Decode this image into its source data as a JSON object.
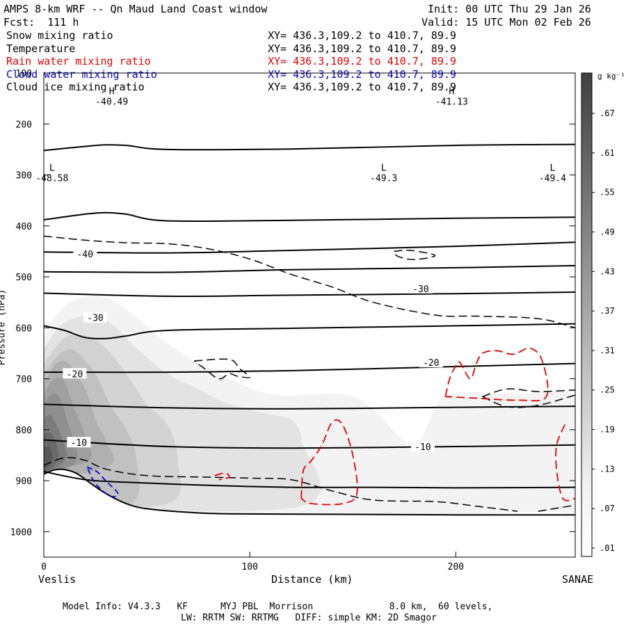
{
  "header": {
    "title": "AMPS 8-km WRF -- Qn Maud Land Coast window",
    "fcst": "Fcst:  111 h",
    "init": "Init: 00 UTC Thu 29 Jan 26",
    "valid": "Valid: 15 UTC Mon 02 Feb 26"
  },
  "fields": [
    {
      "name": "Snow mixing ratio",
      "xy": "XY= 436.3,109.2 to 410.7, 89.9",
      "color": "#000000"
    },
    {
      "name": "Temperature",
      "xy": "XY= 436.3,109.2 to 410.7, 89.9",
      "color": "#000000"
    },
    {
      "name": "Rain water mixing ratio",
      "xy": "XY= 436.3,109.2 to 410.7, 89.9",
      "color": "#e00000"
    },
    {
      "name": "Cloud water mixing ratio",
      "xy": "XY= 436.3,109.2 to 410.7, 89.9",
      "color": "#0000cc"
    },
    {
      "name": "Cloud ice mixing ratio",
      "xy": "XY= 436.3,109.2 to 410.7, 89.9",
      "color": "#000000"
    }
  ],
  "chart_data": {
    "type": "contour-cross-section",
    "xlabel": "Distance (km)",
    "ylabel": "Pressure (hPa)",
    "xlim": [
      0,
      258
    ],
    "ylim": [
      100,
      1050
    ],
    "x_ticks": [
      0,
      100,
      200
    ],
    "y_ticks": [
      100,
      200,
      300,
      400,
      500,
      600,
      700,
      800,
      900,
      1000
    ],
    "endpoints": {
      "left": "Veslis",
      "right": "SANAE"
    },
    "colorbar": {
      "unit": "g kg⁻¹",
      "labels": [
        ".67",
        ".61",
        ".55",
        ".49",
        ".43",
        ".37",
        ".31",
        ".25",
        ".19",
        ".13",
        ".07",
        ".01"
      ],
      "values": [
        0.67,
        0.61,
        0.55,
        0.49,
        0.43,
        0.37,
        0.31,
        0.25,
        0.19,
        0.13,
        0.07,
        0.01
      ]
    },
    "extrema": [
      {
        "type": "H",
        "value": "-40.49",
        "x": 33,
        "p": 150
      },
      {
        "type": "L",
        "value": "-48.58",
        "x": 4,
        "p": 300
      },
      {
        "type": "L",
        "value": "-49.3",
        "x": 165,
        "p": 300
      },
      {
        "type": "H",
        "value": "-41.13",
        "x": 198,
        "p": 150
      },
      {
        "type": "L",
        "value": "-49.4",
        "x": 247,
        "p": 300
      }
    ],
    "isotherm_labels": [
      {
        "value": "-40",
        "x": 20,
        "p": 455
      },
      {
        "value": "-30",
        "x": 25,
        "p": 580
      },
      {
        "value": "-30",
        "x": 183,
        "p": 523
      },
      {
        "value": "-20",
        "x": 15,
        "p": 690
      },
      {
        "value": "-20",
        "x": 188,
        "p": 668
      },
      {
        "value": "-10",
        "x": 17,
        "p": 825
      },
      {
        "value": "-10",
        "x": 184,
        "p": 833
      }
    ],
    "isotherms": [
      {
        "points": [
          [
            0,
            252
          ],
          [
            20,
            244
          ],
          [
            30,
            241
          ],
          [
            40,
            242
          ],
          [
            60,
            250
          ],
          [
            120,
            249
          ],
          [
            200,
            242
          ],
          [
            258,
            240
          ]
        ]
      },
      {
        "points": [
          [
            0,
            388
          ],
          [
            20,
            377
          ],
          [
            30,
            374
          ],
          [
            40,
            377
          ],
          [
            60,
            390
          ],
          [
            120,
            389
          ],
          [
            200,
            385
          ],
          [
            258,
            383
          ]
        ]
      },
      {
        "points": [
          [
            0,
            451
          ],
          [
            60,
            453
          ],
          [
            120,
            448
          ],
          [
            200,
            440
          ],
          [
            258,
            432
          ]
        ]
      },
      {
        "points": [
          [
            0,
            490
          ],
          [
            60,
            491
          ],
          [
            120,
            486
          ],
          [
            200,
            482
          ],
          [
            258,
            478
          ]
        ]
      },
      {
        "points": [
          [
            0,
            532
          ],
          [
            60,
            538
          ],
          [
            120,
            536
          ],
          [
            200,
            533
          ],
          [
            258,
            530
          ]
        ]
      },
      {
        "points": [
          [
            0,
            596
          ],
          [
            10,
            605
          ],
          [
            20,
            619
          ],
          [
            30,
            621
          ],
          [
            40,
            616
          ],
          [
            60,
            605
          ],
          [
            120,
            601
          ],
          [
            200,
            596
          ],
          [
            258,
            592
          ]
        ]
      },
      {
        "points": [
          [
            0,
            687
          ],
          [
            60,
            687
          ],
          [
            120,
            684
          ],
          [
            200,
            676
          ],
          [
            258,
            670
          ]
        ]
      },
      {
        "points": [
          [
            0,
            750
          ],
          [
            60,
            757
          ],
          [
            120,
            759
          ],
          [
            200,
            756
          ],
          [
            258,
            754
          ]
        ]
      },
      {
        "points": [
          [
            0,
            820
          ],
          [
            60,
            833
          ],
          [
            120,
            836
          ],
          [
            200,
            833
          ],
          [
            258,
            830
          ]
        ]
      },
      {
        "points": [
          [
            0,
            882
          ],
          [
            20,
            898
          ],
          [
            40,
            903
          ],
          [
            80,
            909
          ],
          [
            120,
            913
          ],
          [
            160,
            913
          ],
          [
            200,
            914
          ],
          [
            258,
            913
          ]
        ]
      }
    ],
    "terrain": [
      [
        0,
        887
      ],
      [
        5,
        879
      ],
      [
        10,
        878
      ],
      [
        16,
        886
      ],
      [
        22,
        903
      ],
      [
        30,
        925
      ],
      [
        40,
        945
      ],
      [
        50,
        955
      ],
      [
        70,
        962
      ],
      [
        90,
        965
      ],
      [
        150,
        966
      ],
      [
        200,
        967
      ],
      [
        258,
        967
      ]
    ],
    "dashed_contours": [
      {
        "points": [
          [
            0,
            420
          ],
          [
            20,
            428
          ],
          [
            40,
            433
          ],
          [
            60,
            435
          ],
          [
            80,
            445
          ],
          [
            100,
            465
          ],
          [
            120,
            495
          ],
          [
            140,
            520
          ],
          [
            160,
            550
          ],
          [
            190,
            575
          ],
          [
            210,
            577
          ],
          [
            240,
            582
          ],
          [
            258,
            600
          ]
        ]
      },
      {
        "points": [
          [
            0,
            870
          ],
          [
            10,
            855
          ],
          [
            20,
            860
          ],
          [
            30,
            877
          ],
          [
            50,
            890
          ],
          [
            80,
            893
          ],
          [
            100,
            895
          ],
          [
            120,
            898
          ],
          [
            140,
            920
          ],
          [
            160,
            938
          ],
          [
            190,
            941
          ],
          [
            210,
            950
          ],
          [
            230,
            960
          ]
        ]
      },
      {
        "points": [
          [
            170,
            450
          ],
          [
            178,
            448
          ],
          [
            190,
            458
          ],
          [
            180,
            466
          ],
          [
            172,
            460
          ],
          [
            170,
            450
          ]
        ]
      },
      {
        "points": [
          [
            73,
            665
          ],
          [
            90,
            662
          ],
          [
            95,
            680
          ],
          [
            100,
            697
          ],
          [
            94,
            695
          ],
          [
            90,
            690
          ],
          [
            85,
            700
          ],
          [
            78,
            680
          ],
          [
            73,
            665
          ]
        ]
      },
      {
        "points": [
          [
            213,
            735
          ],
          [
            225,
            720
          ],
          [
            240,
            725
          ],
          [
            258,
            722
          ]
        ]
      },
      {
        "points": [
          [
            213,
            735
          ],
          [
            225,
            755
          ],
          [
            240,
            752
          ],
          [
            258,
            732
          ]
        ]
      },
      {
        "points": [
          [
            240,
            960
          ],
          [
            258,
            948
          ]
        ]
      }
    ],
    "rain_contours": [
      {
        "points": [
          [
            125,
            935
          ],
          [
            126,
            880
          ],
          [
            130,
            860
          ],
          [
            135,
            830
          ],
          [
            140,
            785
          ],
          [
            145,
            790
          ],
          [
            150,
            850
          ],
          [
            152,
            925
          ],
          [
            145,
            945
          ],
          [
            130,
            945
          ],
          [
            125,
            935
          ]
        ]
      },
      {
        "points": [
          [
            195,
            735
          ],
          [
            197,
            700
          ],
          [
            200,
            675
          ],
          [
            202,
            668
          ],
          [
            207,
            700
          ],
          [
            210,
            670
          ],
          [
            213,
            650
          ],
          [
            220,
            645
          ],
          [
            228,
            652
          ],
          [
            236,
            640
          ],
          [
            242,
            665
          ],
          [
            244,
            735
          ],
          [
            230,
            742
          ],
          [
            210,
            738
          ],
          [
            195,
            735
          ]
        ]
      },
      {
        "points": [
          [
            253,
            790
          ],
          [
            249,
            830
          ],
          [
            249,
            880
          ],
          [
            252,
            935
          ],
          [
            258,
            935
          ]
        ]
      },
      {
        "points": [
          [
            83,
            890
          ],
          [
            88,
            885
          ],
          [
            90,
            893
          ],
          [
            85,
            898
          ]
        ]
      }
    ],
    "cloud_water_contours": [
      {
        "points": [
          [
            21,
            873
          ],
          [
            26,
            883
          ],
          [
            30,
            900
          ],
          [
            36,
            925
          ],
          [
            32,
            930
          ],
          [
            25,
            905
          ],
          [
            21,
            873
          ]
        ]
      }
    ],
    "snow_fill": [
      {
        "level": 0.01,
        "color": "#f3f3f3",
        "points": [
          [
            0,
            620
          ],
          [
            5,
            580
          ],
          [
            15,
            545
          ],
          [
            30,
            540
          ],
          [
            45,
            580
          ],
          [
            60,
            630
          ],
          [
            80,
            680
          ],
          [
            110,
            730
          ],
          [
            145,
            730
          ],
          [
            160,
            760
          ],
          [
            180,
            830
          ],
          [
            195,
            735
          ],
          [
            230,
            730
          ],
          [
            258,
            740
          ],
          [
            258,
            960
          ],
          [
            0,
            960
          ]
        ]
      },
      {
        "level": 0.07,
        "color": "#e3e3e3",
        "points": [
          [
            0,
            640
          ],
          [
            10,
            590
          ],
          [
            25,
            575
          ],
          [
            35,
            600
          ],
          [
            45,
            640
          ],
          [
            60,
            690
          ],
          [
            75,
            720
          ],
          [
            90,
            750
          ],
          [
            110,
            770
          ],
          [
            120,
            780
          ],
          [
            125,
            820
          ],
          [
            125,
            950
          ],
          [
            0,
            950
          ]
        ]
      },
      {
        "level": 0.13,
        "color": "#d2d2d2",
        "points": [
          [
            0,
            670
          ],
          [
            10,
            620
          ],
          [
            20,
            615
          ],
          [
            30,
            640
          ],
          [
            40,
            690
          ],
          [
            50,
            750
          ],
          [
            60,
            790
          ],
          [
            65,
            860
          ],
          [
            60,
            945
          ],
          [
            0,
            945
          ]
        ]
      },
      {
        "level": 0.19,
        "color": "#c1c1c1",
        "points": [
          [
            0,
            690
          ],
          [
            8,
            650
          ],
          [
            15,
            645
          ],
          [
            25,
            690
          ],
          [
            32,
            750
          ],
          [
            40,
            800
          ],
          [
            45,
            860
          ],
          [
            42,
            945
          ],
          [
            0,
            945
          ]
        ]
      },
      {
        "level": 0.25,
        "color": "#b0b0b0",
        "points": [
          [
            0,
            710
          ],
          [
            6,
            670
          ],
          [
            12,
            670
          ],
          [
            20,
            720
          ],
          [
            25,
            780
          ],
          [
            30,
            820
          ],
          [
            32,
            870
          ],
          [
            0,
            900
          ]
        ]
      },
      {
        "level": 0.31,
        "color": "#a0a0a0",
        "points": [
          [
            0,
            730
          ],
          [
            5,
            700
          ],
          [
            10,
            705
          ],
          [
            15,
            760
          ],
          [
            20,
            810
          ],
          [
            22,
            860
          ],
          [
            0,
            880
          ]
        ]
      },
      {
        "level": 0.37,
        "color": "#8f8f8f",
        "points": [
          [
            0,
            750
          ],
          [
            4,
            730
          ],
          [
            8,
            740
          ],
          [
            12,
            790
          ],
          [
            16,
            840
          ],
          [
            14,
            870
          ],
          [
            0,
            882
          ]
        ]
      },
      {
        "level": 0.43,
        "color": "#7c7c7c",
        "points": [
          [
            0,
            780
          ],
          [
            3,
            770
          ],
          [
            6,
            790
          ],
          [
            9,
            820
          ],
          [
            11,
            850
          ],
          [
            8,
            870
          ],
          [
            0,
            884
          ]
        ]
      },
      {
        "level": 0.49,
        "color": "#6a6a6a",
        "points": [
          [
            0,
            810
          ],
          [
            3,
            805
          ],
          [
            6,
            825
          ],
          [
            7,
            855
          ],
          [
            4,
            875
          ],
          [
            0,
            885
          ]
        ]
      },
      {
        "level": 0.55,
        "color": "#585858",
        "points": [
          [
            0,
            835
          ],
          [
            3,
            835
          ],
          [
            4,
            860
          ],
          [
            0,
            880
          ]
        ]
      }
    ]
  },
  "footer": {
    "line1": "Model Info: V4.3.3   KF      MYJ PBL  Morrison              8.0 km,  60 levels,",
    "line2": "LW: RRTM SW: RRTMG   DIFF: simple KM: 2D Smagor"
  }
}
